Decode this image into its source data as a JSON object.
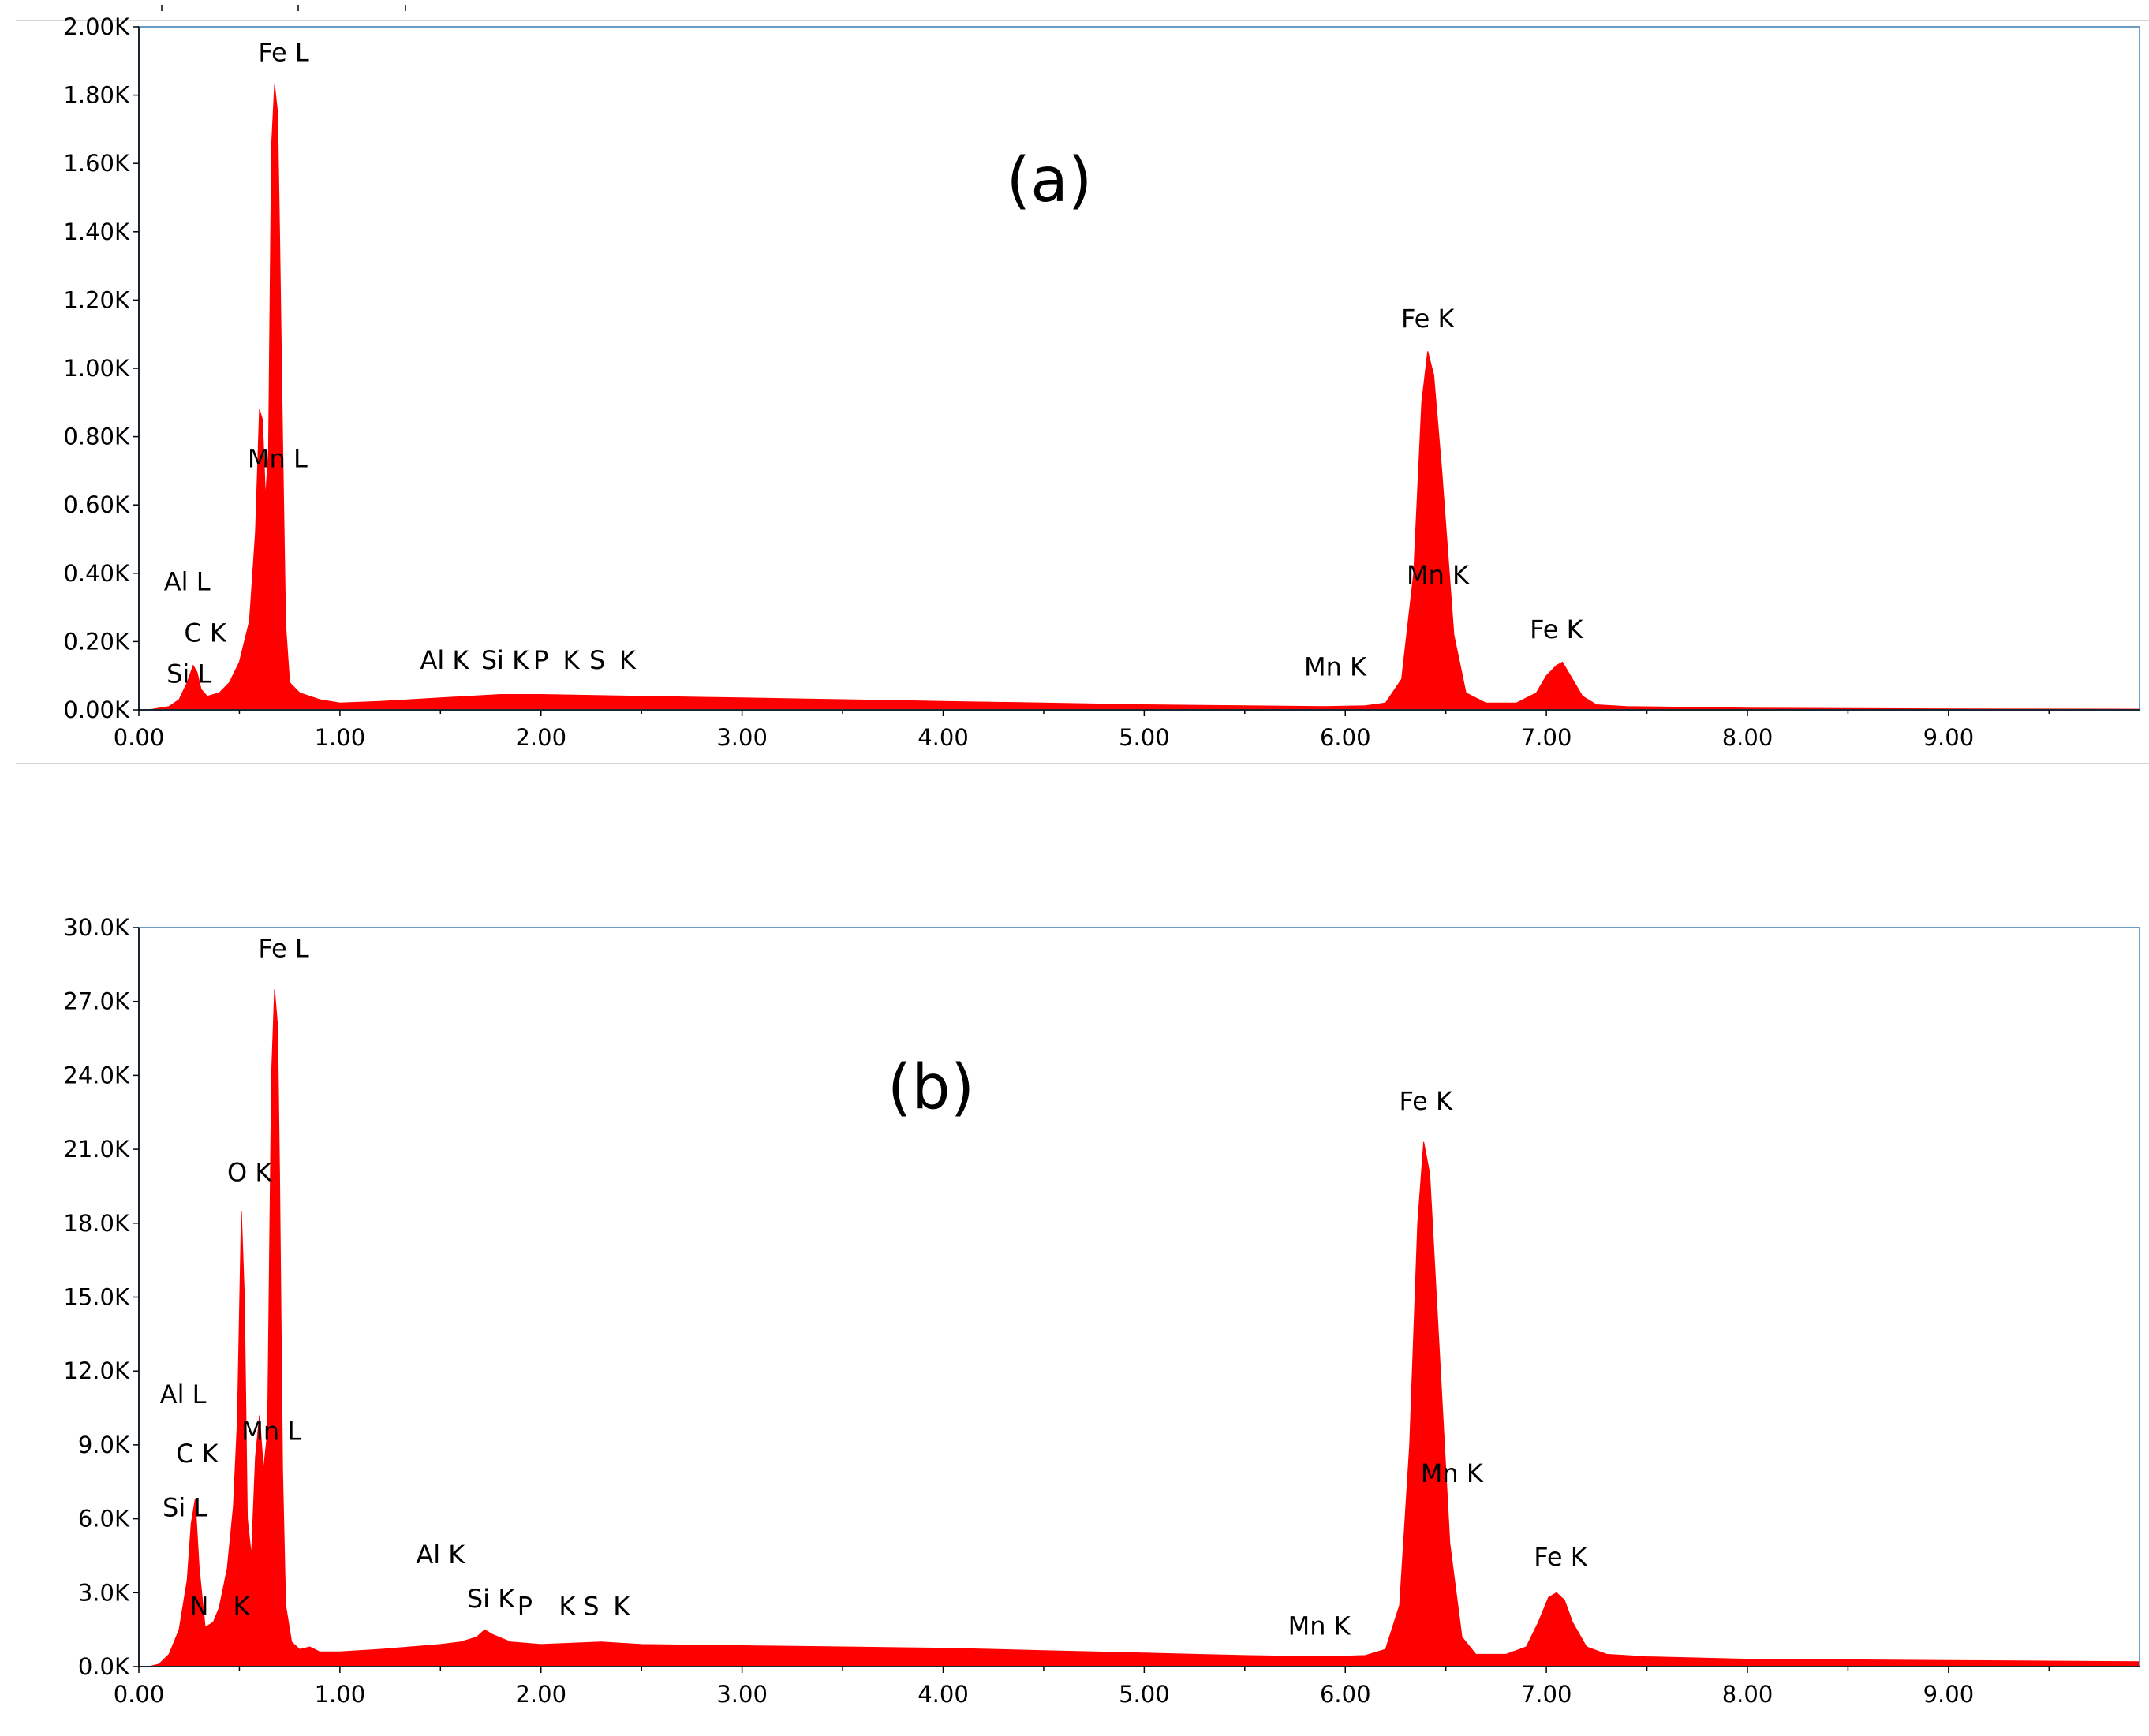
{
  "colors": {
    "spectrum": "#ff0000",
    "frame": "#6a9cc8",
    "axis": "#000000"
  },
  "chart_data": [
    {
      "type": "area",
      "panel_label": "(a)",
      "title": "",
      "xlabel": "",
      "ylabel": "",
      "xlim": [
        0,
        9.95
      ],
      "ylim": [
        0,
        2000
      ],
      "x_ticks": [
        "0.00",
        "1.00",
        "2.00",
        "3.00",
        "4.00",
        "5.00",
        "6.00",
        "7.00",
        "8.00",
        "9.00"
      ],
      "y_ticks": [
        "0.00K",
        "0.20K",
        "0.40K",
        "0.60K",
        "0.80K",
        "1.00K",
        "1.20K",
        "1.40K",
        "1.60K",
        "1.80K",
        "2.00K"
      ],
      "grid": false,
      "series": [
        {
          "x": [
            0.05,
            0.1,
            0.15,
            0.2,
            0.24,
            0.27,
            0.29,
            0.31,
            0.34,
            0.4,
            0.45,
            0.5,
            0.55,
            0.58,
            0.6,
            0.615,
            0.63,
            0.645,
            0.66,
            0.675,
            0.69,
            0.7,
            0.715,
            0.73,
            0.75,
            0.8,
            0.9,
            1.0,
            1.2,
            1.5,
            1.8,
            2.0,
            2.5,
            3.0,
            3.5,
            4.0,
            4.5,
            5.0,
            5.5,
            5.9,
            6.1,
            6.2,
            6.28,
            6.34,
            6.38,
            6.41,
            6.44,
            6.48,
            6.54,
            6.6,
            6.7,
            6.85,
            6.95,
            7.0,
            7.05,
            7.08,
            7.12,
            7.18,
            7.25,
            7.4,
            8.0,
            9.0,
            9.95
          ],
          "y": [
            0,
            5,
            10,
            30,
            80,
            130,
            110,
            60,
            40,
            50,
            80,
            140,
            260,
            520,
            880,
            850,
            620,
            760,
            1650,
            1830,
            1750,
            1400,
            800,
            250,
            80,
            50,
            30,
            20,
            25,
            35,
            45,
            45,
            40,
            35,
            30,
            25,
            20,
            15,
            12,
            10,
            12,
            20,
            90,
            400,
            900,
            1050,
            980,
            700,
            220,
            50,
            20,
            20,
            50,
            100,
            130,
            140,
            100,
            40,
            15,
            10,
            5,
            3,
            2
          ]
        }
      ],
      "annotations": [
        {
          "text": "Fe L",
          "x": 0.72,
          "y": 1900
        },
        {
          "text": "Mn L",
          "x": 0.69,
          "y": 710
        },
        {
          "text": "Al L",
          "x": 0.24,
          "y": 350
        },
        {
          "text": "C  K",
          "x": 0.33,
          "y": 200
        },
        {
          "text": "Si L",
          "x": 0.25,
          "y": 80
        },
        {
          "text": "Al K",
          "x": 1.52,
          "y": 120
        },
        {
          "text": "Si K",
          "x": 1.82,
          "y": 120
        },
        {
          "text": "P",
          "x": 2.0,
          "y": 120
        },
        {
          "text": "K",
          "x": 2.15,
          "y": 120
        },
        {
          "text": "S",
          "x": 2.28,
          "y": 120
        },
        {
          "text": "K",
          "x": 2.43,
          "y": 120
        },
        {
          "text": "Mn K",
          "x": 5.95,
          "y": 100
        },
        {
          "text": "Fe K",
          "x": 6.41,
          "y": 1120
        },
        {
          "text": "Mn K",
          "x": 6.46,
          "y": 370
        },
        {
          "text": "Fe K",
          "x": 7.05,
          "y": 210
        }
      ]
    },
    {
      "type": "area",
      "panel_label": "(b)",
      "title": "",
      "xlabel": "",
      "ylabel": "",
      "xlim": [
        0,
        9.95
      ],
      "ylim": [
        0,
        30000
      ],
      "x_ticks": [
        "0.00",
        "1.00",
        "2.00",
        "3.00",
        "4.00",
        "5.00",
        "6.00",
        "7.00",
        "8.00",
        "9.00"
      ],
      "y_ticks": [
        "0.0K",
        "3.0K",
        "6.0K",
        "9.0K",
        "12.0K",
        "15.0K",
        "18.0K",
        "21.0K",
        "24.0K",
        "27.0K",
        "30.0K"
      ],
      "grid": false,
      "series": [
        {
          "x": [
            0.05,
            0.1,
            0.15,
            0.2,
            0.24,
            0.26,
            0.28,
            0.3,
            0.33,
            0.37,
            0.4,
            0.44,
            0.47,
            0.49,
            0.51,
            0.525,
            0.54,
            0.56,
            0.58,
            0.6,
            0.62,
            0.64,
            0.66,
            0.675,
            0.69,
            0.7,
            0.715,
            0.73,
            0.76,
            0.8,
            0.85,
            0.9,
            1.0,
            1.2,
            1.5,
            1.6,
            1.68,
            1.72,
            1.76,
            1.85,
            2.0,
            2.3,
            2.5,
            3.0,
            3.5,
            4.0,
            4.5,
            5.0,
            5.5,
            5.9,
            6.1,
            6.2,
            6.27,
            6.32,
            6.36,
            6.39,
            6.42,
            6.46,
            6.52,
            6.58,
            6.65,
            6.8,
            6.9,
            6.96,
            7.01,
            7.05,
            7.09,
            7.13,
            7.2,
            7.3,
            7.5,
            8.0,
            9.0,
            9.95
          ],
          "y": [
            0,
            100,
            500,
            1500,
            3500,
            5800,
            6800,
            4000,
            1600,
            1800,
            2400,
            4000,
            6500,
            10000,
            18500,
            15000,
            6000,
            4500,
            8500,
            10200,
            8000,
            9500,
            24000,
            27500,
            26000,
            20000,
            8000,
            2500,
            1000,
            700,
            800,
            600,
            600,
            700,
            900,
            1000,
            1200,
            1500,
            1300,
            1000,
            900,
            1000,
            900,
            850,
            800,
            750,
            650,
            550,
            450,
            400,
            450,
            700,
            2500,
            9000,
            18000,
            21300,
            20000,
            14000,
            5000,
            1200,
            500,
            500,
            800,
            1800,
            2800,
            3000,
            2700,
            1800,
            800,
            500,
            400,
            300,
            250,
            200
          ]
        }
      ],
      "annotations": [
        {
          "text": "Fe L",
          "x": 0.72,
          "y": 28800
        },
        {
          "text": "O  K",
          "x": 0.55,
          "y": 19700
        },
        {
          "text": "Al L",
          "x": 0.22,
          "y": 10700
        },
        {
          "text": "Mn L",
          "x": 0.66,
          "y": 9200
        },
        {
          "text": "C  K",
          "x": 0.29,
          "y": 8300
        },
        {
          "text": "Si L",
          "x": 0.23,
          "y": 6100
        },
        {
          "text": "N",
          "x": 0.3,
          "y": 2100
        },
        {
          "text": "K",
          "x": 0.51,
          "y": 2100
        },
        {
          "text": "Al K",
          "x": 1.5,
          "y": 4200
        },
        {
          "text": "Si K",
          "x": 1.75,
          "y": 2400
        },
        {
          "text": "P",
          "x": 1.92,
          "y": 2100
        },
        {
          "text": "K",
          "x": 2.13,
          "y": 2100
        },
        {
          "text": "S",
          "x": 2.25,
          "y": 2100
        },
        {
          "text": "K",
          "x": 2.4,
          "y": 2100
        },
        {
          "text": "Mn K",
          "x": 5.87,
          "y": 1300
        },
        {
          "text": "Fe K",
          "x": 6.4,
          "y": 22600
        },
        {
          "text": "Mn K",
          "x": 6.53,
          "y": 7500
        },
        {
          "text": "Fe K",
          "x": 7.07,
          "y": 4100
        }
      ]
    }
  ]
}
